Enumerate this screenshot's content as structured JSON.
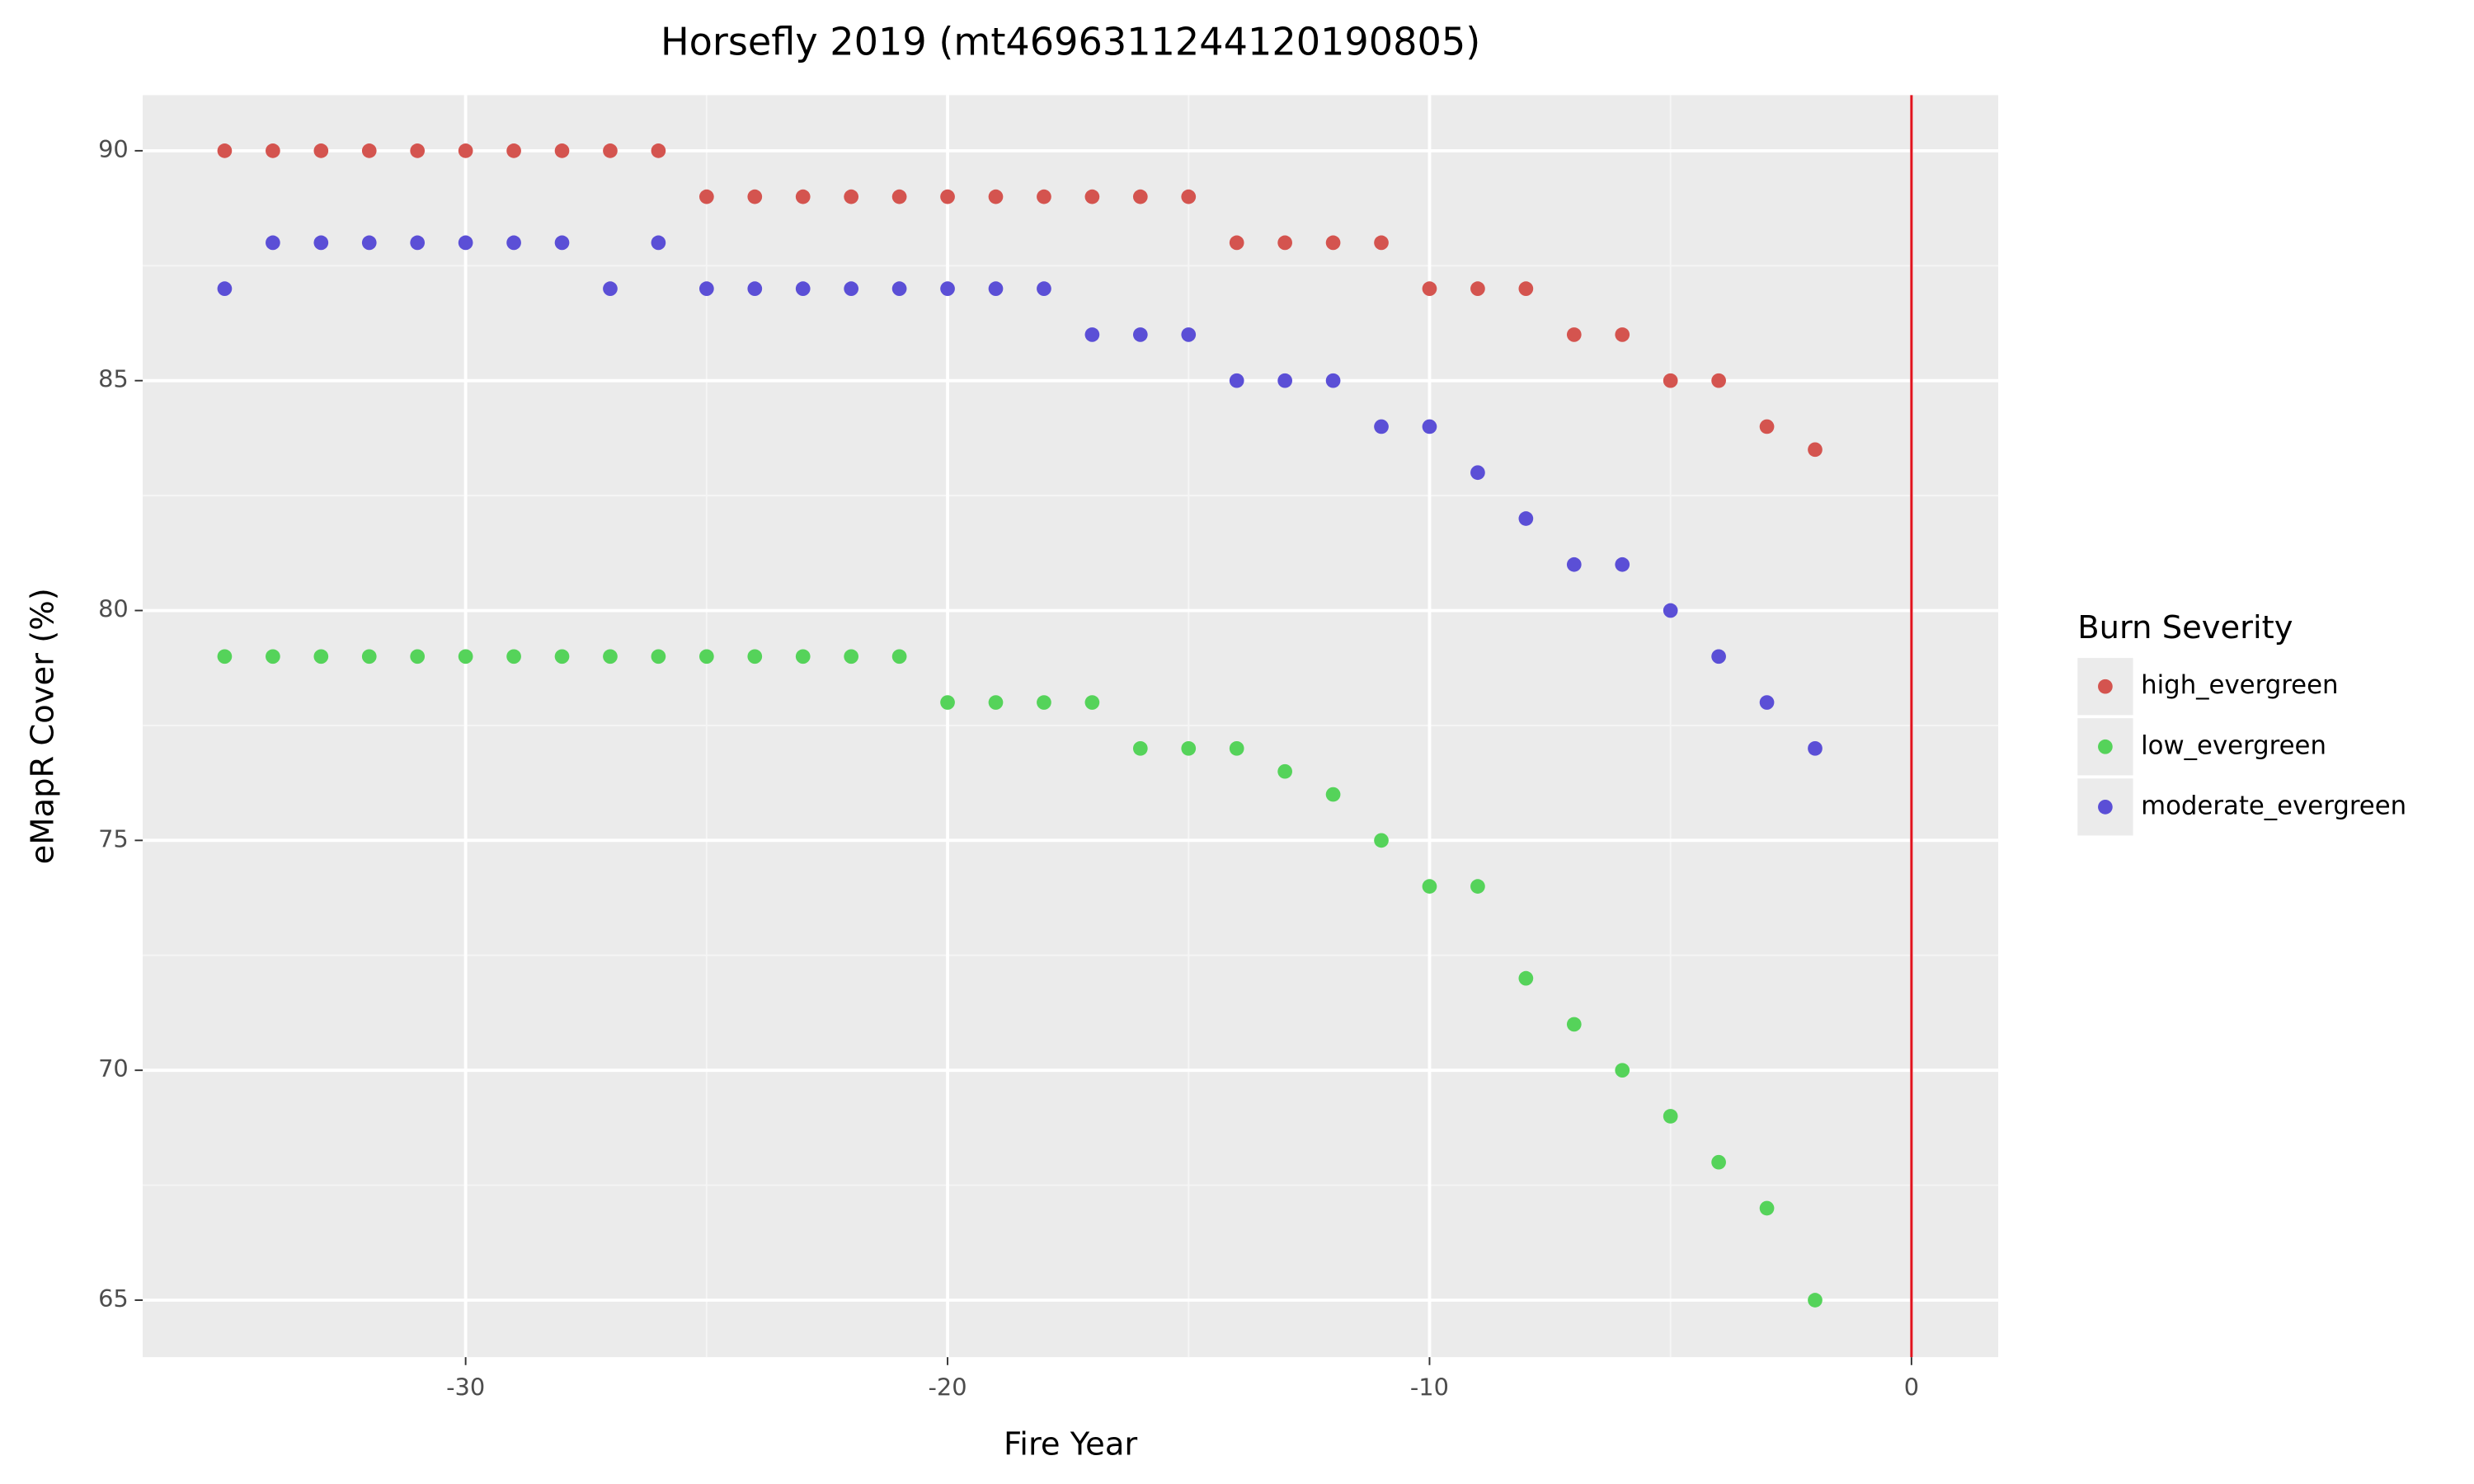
{
  "chart_data": {
    "type": "scatter",
    "title": "Horsefly 2019 (mt4696311244120190805)",
    "x_label": "Fire Year",
    "y_label": "eMapR Cover (%)",
    "legend_title": "Burn Severity",
    "legend_position": "right",
    "grid": true,
    "x": [
      -35,
      -34,
      -33,
      -32,
      -31,
      -30,
      -29,
      -28,
      -27,
      -26,
      -25,
      -24,
      -23,
      -22,
      -21,
      -20,
      -19,
      -18,
      -17,
      -16,
      -15,
      -14,
      -13,
      -12,
      -11,
      -10,
      -9,
      -8,
      -7,
      -6,
      -5,
      -4,
      -3,
      -2
    ],
    "series": [
      {
        "name": "high_evergreen",
        "color": "#d4544f",
        "values": [
          90,
          90,
          90,
          90,
          90,
          90,
          90,
          90,
          90,
          90,
          89,
          89,
          89,
          89,
          89,
          89,
          89,
          89,
          89,
          89,
          89,
          88,
          88,
          88,
          88,
          87,
          87,
          87,
          86,
          86,
          85,
          85,
          84,
          83.5
        ]
      },
      {
        "name": "low_evergreen",
        "color": "#55d35a",
        "values": [
          79,
          79,
          79,
          79,
          79,
          79,
          79,
          79,
          79,
          79,
          79,
          79,
          79,
          79,
          79,
          78,
          78,
          78,
          78,
          77,
          77,
          77,
          76.5,
          76,
          75,
          74,
          74,
          72,
          71,
          70,
          69,
          68,
          67,
          65
        ]
      },
      {
        "name": "moderate_evergreen",
        "color": "#5b4fd6",
        "values": [
          87,
          88,
          88,
          88,
          88,
          88,
          88,
          88,
          87,
          88,
          87,
          87,
          87,
          87,
          87,
          87,
          87,
          87,
          86,
          86,
          86,
          85,
          85,
          85,
          84,
          84,
          83,
          82,
          81,
          81,
          80,
          79,
          78,
          77
        ]
      }
    ],
    "vline": {
      "x": 0,
      "color": "#e0141e"
    },
    "xlim": [
      -36.7,
      1.8
    ],
    "ylim": [
      63.76,
      91.21
    ],
    "xticks": [
      -30,
      -20,
      -10,
      0
    ],
    "yticks": [
      65,
      70,
      75,
      80,
      85,
      90
    ]
  }
}
